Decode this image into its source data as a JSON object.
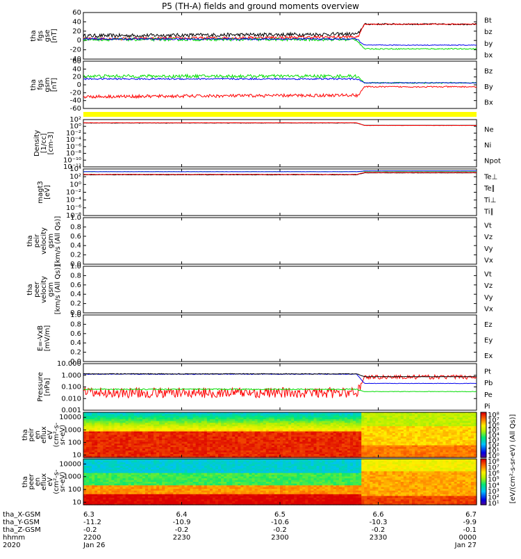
{
  "title": "P5 (TH-A) fields and ground moments overview",
  "colors": {
    "black": "#000000",
    "red": "#ff0000",
    "green": "#00dd00",
    "blue": "#0000ee",
    "yellow": "#ffff00",
    "darkred": "#aa0000"
  },
  "chart_data": [
    {
      "type": "line",
      "id": "fgs-gse",
      "ylabel_lines": [
        "tha",
        "fgs",
        "gse",
        "[nT]"
      ],
      "yticks": [
        "60",
        "40",
        "20",
        "0",
        "-20",
        "-40"
      ],
      "ylim": [
        -40,
        60
      ],
      "legend": [
        {
          "name": "Bt",
          "color": "#000000"
        },
        {
          "name": "bz",
          "color": "#ff0000"
        },
        {
          "name": "by",
          "color": "#00dd00"
        },
        {
          "name": "bx",
          "color": "#0000ee"
        }
      ],
      "series": [
        {
          "name": "Bt",
          "color": "#000000",
          "before": 10,
          "after": 35,
          "noise": 4
        },
        {
          "name": "bz",
          "color": "#ff0000",
          "before": 3,
          "after": 35,
          "noise": 3
        },
        {
          "name": "by",
          "color": "#00dd00",
          "before": 2,
          "after": -18,
          "noise": 3
        },
        {
          "name": "bx",
          "color": "#0000ee",
          "before": 3,
          "after": -10,
          "noise": 2
        }
      ]
    },
    {
      "type": "line",
      "id": "fgs-gsm",
      "ylabel_lines": [
        "tha",
        "fgs",
        "gsm",
        "[nT]"
      ],
      "yticks": [
        "60",
        "40",
        "20",
        "0",
        "-20",
        "-40",
        "-60"
      ],
      "ylim": [
        -60,
        60
      ],
      "legend": [
        {
          "name": "Bz",
          "color": "#ff0000"
        },
        {
          "name": "By",
          "color": "#00dd00"
        },
        {
          "name": "Bx",
          "color": "#0000ee"
        }
      ],
      "series": [
        {
          "name": "By",
          "color": "#00dd00",
          "before": 22,
          "after": 5,
          "noise": 4
        },
        {
          "name": "Bx",
          "color": "#0000ee",
          "before": 15,
          "after": 5,
          "noise": 2
        },
        {
          "name": "Bz",
          "color": "#ff0000",
          "before": -30,
          "after": -5,
          "noise": 4
        }
      ]
    },
    {
      "type": "line",
      "id": "density",
      "log": true,
      "ylabel_lines": [
        "Density",
        "[1/cc]",
        "[cm-3]"
      ],
      "yticks": [
        "10²",
        "10⁰",
        "10⁻²",
        "10⁻⁴",
        "10⁻⁶",
        "10⁻⁸",
        "10⁻¹⁰",
        "10⁻¹²"
      ],
      "ylim": [
        -12,
        2
      ],
      "legend": [
        {
          "name": "Ne",
          "color": "#ff0000"
        },
        {
          "name": "Ni",
          "color": "#000000"
        },
        {
          "name": "Npot",
          "color": "#0000ee"
        }
      ],
      "series": [
        {
          "name": "Ni",
          "color": "#000000",
          "before": 1.0,
          "after": 0.3,
          "noise": 0.05
        },
        {
          "name": "Ne",
          "color": "#ff0000",
          "before": 1.05,
          "after": 0.25,
          "noise": 0.05
        }
      ]
    },
    {
      "type": "line",
      "id": "temperature",
      "log": true,
      "ylabel_lines": [
        "magt3",
        "[eV]"
      ],
      "yticks": [
        "10⁴",
        "10²",
        "10⁰",
        "10⁻²",
        "10⁻⁴",
        "10⁻⁶",
        "10⁻⁸"
      ],
      "ylim": [
        -8,
        4
      ],
      "legend": [
        {
          "name": "Te⊥",
          "color": "#ff0000"
        },
        {
          "name": "Te∥",
          "color": "#000000"
        },
        {
          "name": "Ti⊥",
          "color": "#0000ee"
        },
        {
          "name": "Ti∥",
          "color": "#00dd00"
        }
      ],
      "series": [
        {
          "name": "Ti∥",
          "color": "#00dd00",
          "before": 3.3,
          "after": 3.4,
          "noise": 0.03
        },
        {
          "name": "Ti⊥",
          "color": "#0000ee",
          "before": 3.3,
          "after": 3.5,
          "noise": 0.03
        },
        {
          "name": "Te∥",
          "color": "#000000",
          "before": 2.5,
          "after": 3.0,
          "noise": 0.05
        },
        {
          "name": "Te⊥",
          "color": "#ff0000",
          "before": 2.6,
          "after": 3.1,
          "noise": 0.05
        }
      ]
    },
    {
      "type": "line",
      "id": "peir-velocity",
      "ylabel_lines": [
        "tha",
        "peir",
        "velocity",
        "gsm",
        "[km/s (All Qs)]"
      ],
      "yticks": [
        "1.0",
        "0.8",
        "0.6",
        "0.4",
        "0.2",
        "0.0"
      ],
      "ylim": [
        0,
        1
      ],
      "legend": [
        {
          "name": "Vt",
          "color": "#000000"
        },
        {
          "name": "Vz",
          "color": "#ff0000"
        },
        {
          "name": "Vy",
          "color": "#00dd00"
        },
        {
          "name": "Vx",
          "color": "#0000ee"
        }
      ],
      "series": []
    },
    {
      "type": "line",
      "id": "peer-velocity",
      "ylabel_lines": [
        "tha",
        "peer",
        "velocity",
        "gsm",
        "[km/s (All Qs)]"
      ],
      "yticks": [
        "1.0",
        "0.8",
        "0.6",
        "0.4",
        "0.2",
        "0.0"
      ],
      "ylim": [
        0,
        1
      ],
      "legend": [
        {
          "name": "Vt",
          "color": "#000000"
        },
        {
          "name": "Vz",
          "color": "#ff0000"
        },
        {
          "name": "Vy",
          "color": "#00dd00"
        },
        {
          "name": "Vx",
          "color": "#0000ee"
        }
      ],
      "series": []
    },
    {
      "type": "line",
      "id": "efield",
      "ylabel_lines": [
        "E=-VxB",
        "[mV/m]"
      ],
      "yticks": [
        "1.0",
        "0.8",
        "0.6",
        "0.4",
        "0.2",
        "0.0"
      ],
      "ylim": [
        0,
        1
      ],
      "legend": [
        {
          "name": "Ez",
          "color": "#ff0000"
        },
        {
          "name": "Ey",
          "color": "#00dd00"
        },
        {
          "name": "Ex",
          "color": "#0000ee"
        }
      ],
      "series": []
    },
    {
      "type": "line",
      "id": "pressure",
      "log": true,
      "ylabel_lines": [
        "Pressure",
        "[nPa]"
      ],
      "yticks": [
        "10.000",
        "1.000",
        "0.100",
        "0.010",
        "0.001"
      ],
      "ylim": [
        -3,
        1
      ],
      "legend": [
        {
          "name": "Pt",
          "color": "#000000"
        },
        {
          "name": "Pb",
          "color": "#ff0000"
        },
        {
          "name": "Pe",
          "color": "#00dd00"
        },
        {
          "name": "Pi",
          "color": "#0000ee"
        }
      ],
      "series": [
        {
          "name": "Pb",
          "color": "#ff0000",
          "before": -1.5,
          "after": -0.15,
          "noise": 0.45
        },
        {
          "name": "Pe",
          "color": "#00dd00",
          "before": -1.2,
          "after": -1.4,
          "noise": 0.05
        },
        {
          "name": "Pi",
          "color": "#0000ee",
          "before": 0.1,
          "after": -0.7,
          "noise": 0.03
        },
        {
          "name": "Pt",
          "color": "#000000",
          "before": 0.12,
          "after": -0.12,
          "noise": 0.03
        }
      ]
    },
    {
      "type": "heatmap",
      "id": "peir-spectrogram",
      "ylabel_lines": [
        "tha",
        "peir",
        "en",
        "eflux",
        "eV",
        "(cm²-s-",
        "sr-eV)"
      ],
      "yticks": [
        "10000",
        "1000",
        "100",
        "10"
      ],
      "ylim_log": [
        0.8,
        4.4
      ],
      "colorbar_label": "[eV/(cm²-s-sr-eV) (All Qs)]",
      "colorbar_ticks": [
        "10⁸",
        "10⁷",
        "10⁶",
        "10⁵",
        "10⁴",
        "10³",
        "10²",
        "10¹",
        "10⁰"
      ]
    },
    {
      "type": "heatmap",
      "id": "peer-spectrogram",
      "ylabel_lines": [
        "tha",
        "peer",
        "en",
        "eflux",
        "eV",
        "(cm²-s-",
        "sr-eV)"
      ],
      "yticks": [
        "10000",
        "1000",
        "100",
        "10"
      ],
      "ylim_log": [
        0.8,
        4.4
      ],
      "colorbar_label": "[eV/(cm²-s-sr-eV) (All Qs)]",
      "colorbar_ticks": [
        "10⁸",
        "10⁷",
        "10⁶",
        "10⁵",
        "10⁴",
        "10³",
        "10²",
        "10¹"
      ]
    }
  ],
  "x_axis": {
    "row_labels": [
      "tha_X-GSM",
      "tha_Y-GSM",
      "tha_Z-GSM",
      "hhmm",
      "2020"
    ],
    "ticks": [
      {
        "frac": 0.0,
        "lines": [
          "6.3",
          "-11.2",
          "-0.2",
          "2200",
          "Jan 26"
        ]
      },
      {
        "frac": 0.25,
        "lines": [
          "6.4",
          "-10.9",
          "-0.2",
          "2230",
          ""
        ]
      },
      {
        "frac": 0.5,
        "lines": [
          "6.5",
          "-10.6",
          "-0.2",
          "2300",
          ""
        ]
      },
      {
        "frac": 0.75,
        "lines": [
          "6.6",
          "-10.3",
          "-0.2",
          "2330",
          ""
        ]
      },
      {
        "frac": 1.0,
        "lines": [
          "6.7",
          "-9.9",
          "-0.1",
          "0000",
          "Jan 27"
        ]
      }
    ]
  }
}
